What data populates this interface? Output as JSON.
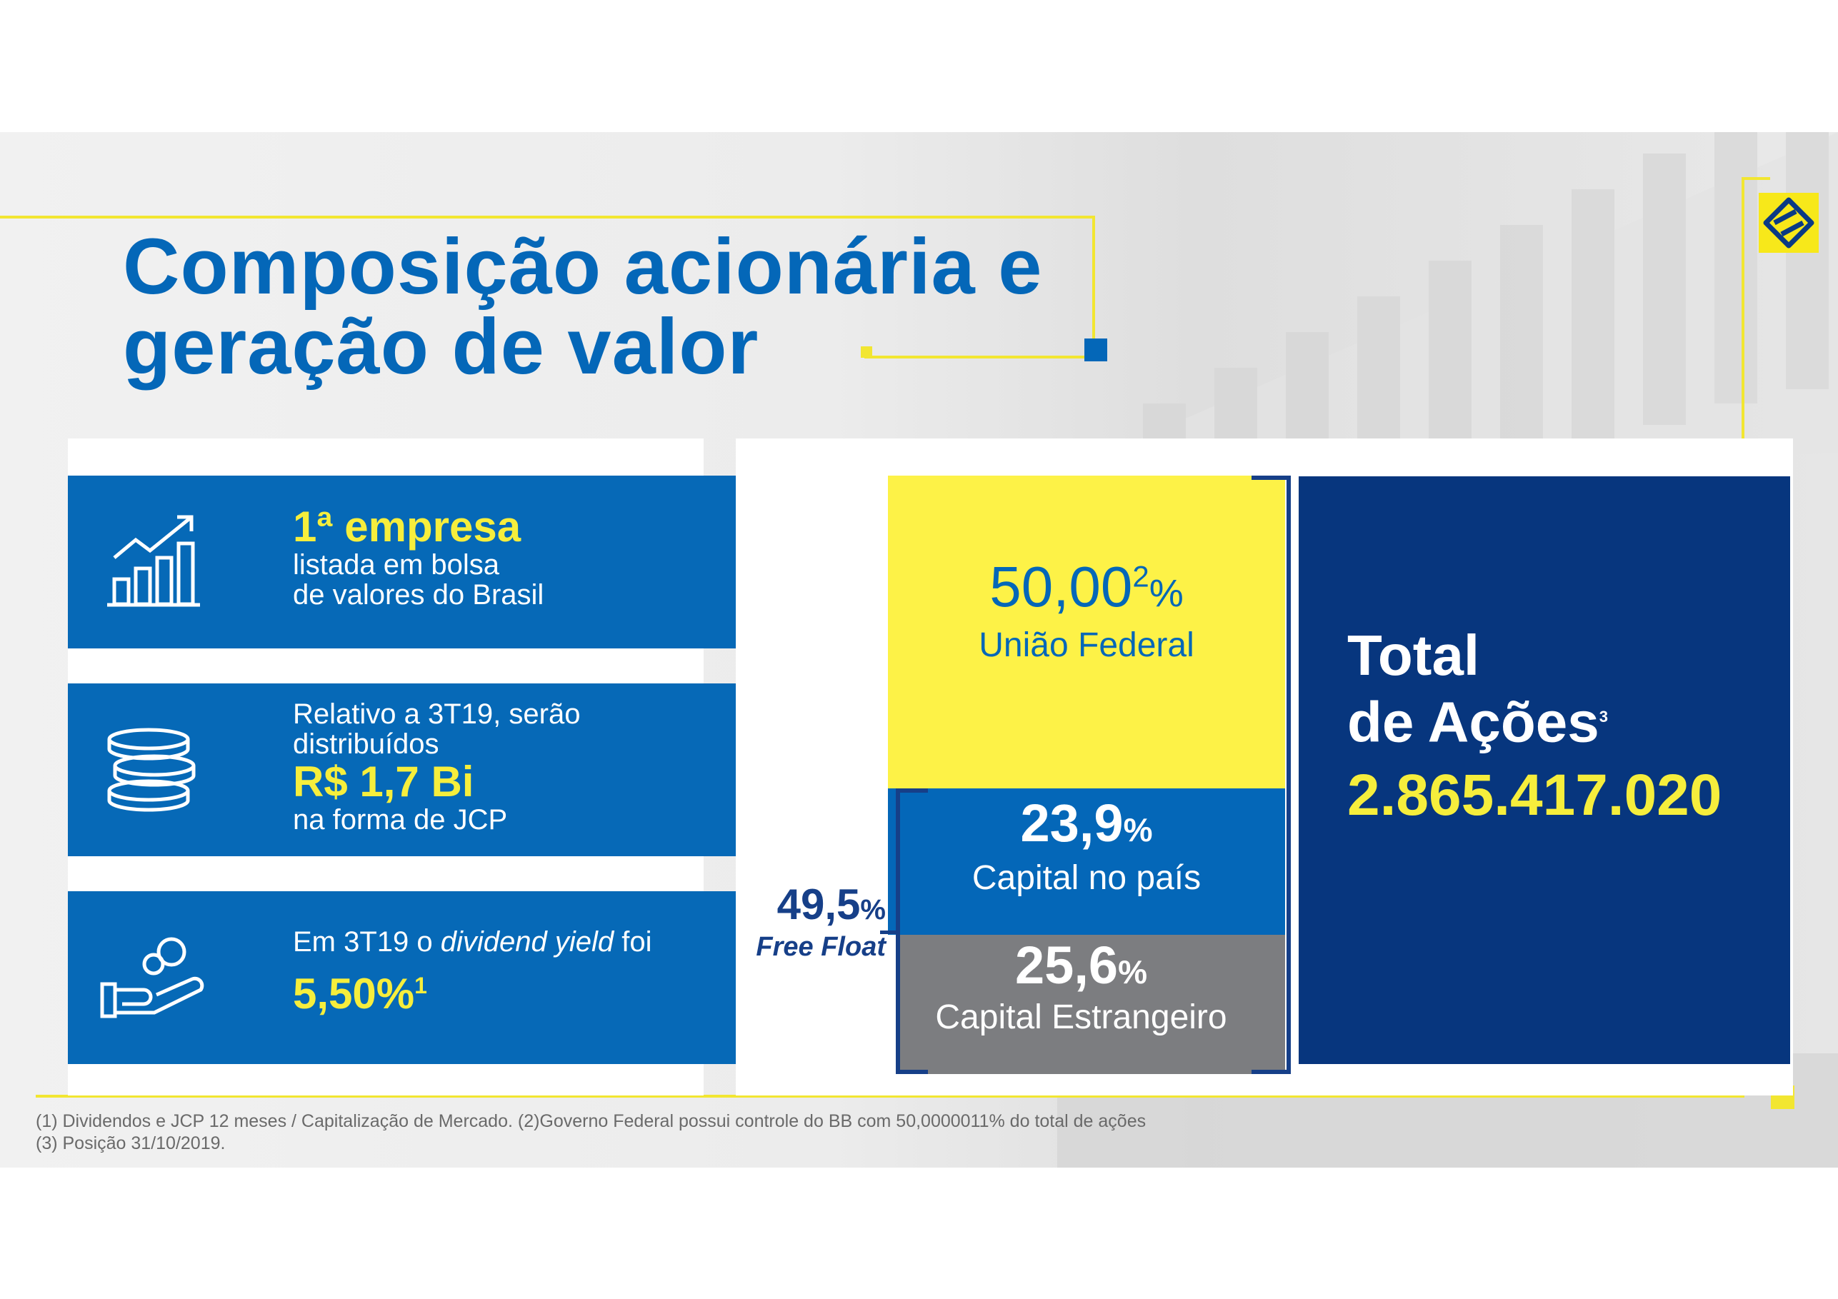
{
  "title": {
    "line1": "Composição acionária e",
    "line2": "geração de valor"
  },
  "cards": [
    {
      "headline": "1ª empresa",
      "line1": "listada em bolsa",
      "line2": "de valores do Brasil"
    },
    {
      "line1": "Relativo a 3T19, serão",
      "line2": "distribuídos",
      "headline": "R$ 1,7 Bi",
      "line3": "na forma de JCP"
    },
    {
      "prefix": "Em 3T19 o ",
      "italic": "dividend yield",
      "suffix": " foi",
      "headline": "5,50%",
      "note": "1"
    }
  ],
  "shareholding": {
    "uniao": {
      "value": "50,00",
      "note": "2",
      "unit": "%",
      "label": "União Federal"
    },
    "pais": {
      "value": "23,9",
      "unit": "%",
      "label": "Capital no país"
    },
    "estrangeiro": {
      "value": "25,6",
      "unit": "%",
      "label": "Capital Estrangeiro"
    },
    "free_float": {
      "value": "49,5",
      "unit": "%",
      "label": "Free Float"
    }
  },
  "total": {
    "line1": "Total",
    "line2": "de Ações",
    "note": "3",
    "value": "2.865.417.020"
  },
  "footnotes": [
    "(1)  Dividendos e JCP 12 meses / Capitalização de Mercado. (2)Governo Federal possui controle do BB com 50,0000011% do total de ações",
    "(3)  Posição 31/10/2019."
  ],
  "colors": {
    "blue": "#0669b7",
    "navy": "#07367e",
    "yellow": "#fdf247",
    "gray": "#7c7d80"
  }
}
